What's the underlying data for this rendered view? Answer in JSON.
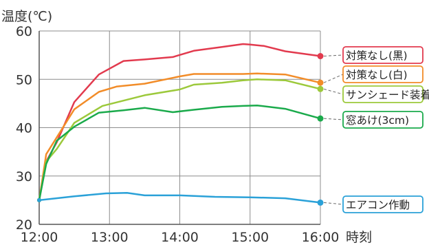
{
  "chart_data": {
    "type": "line",
    "ylabel": "温度(℃)",
    "xlabel": "時刻",
    "x_ticks": [
      "12:00",
      "13:00",
      "14:00",
      "15:00",
      "16:00"
    ],
    "y_ticks": [
      20,
      30,
      40,
      50,
      60
    ],
    "xlim": [
      12.0,
      16.0
    ],
    "ylim": [
      20,
      60
    ],
    "grid": true,
    "legend_placement": "right, leader lines to series end points",
    "series": [
      {
        "name": "対策なし(黒)",
        "color": "#e23a4e",
        "x": [
          12.0,
          12.1,
          12.25,
          12.5,
          12.85,
          13.2,
          13.5,
          13.9,
          14.2,
          14.6,
          14.9,
          15.0,
          15.2,
          15.5,
          16.0
        ],
        "y": [
          25,
          33,
          37,
          45.3,
          51,
          53.8,
          54.1,
          54.6,
          55.9,
          56.7,
          57.3,
          57.2,
          56.9,
          55.8,
          54.8
        ]
      },
      {
        "name": "対策なし(白)",
        "color": "#f28c28",
        "x": [
          12.0,
          12.1,
          12.25,
          12.5,
          12.85,
          13.1,
          13.5,
          14.0,
          14.2,
          14.6,
          14.9,
          15.1,
          15.5,
          16.0
        ],
        "y": [
          25,
          34.5,
          38,
          43.8,
          47.4,
          48.5,
          49.1,
          50.6,
          51.1,
          51.1,
          51.1,
          51.2,
          51,
          49.3
        ]
      },
      {
        "name": "サンシェード装着",
        "color": "#9cc93b",
        "x": [
          12.0,
          12.1,
          12.25,
          12.5,
          12.9,
          13.2,
          13.5,
          14.0,
          14.2,
          14.6,
          14.9,
          15.1,
          15.5,
          16.0
        ],
        "y": [
          25,
          33,
          35.6,
          41,
          44.5,
          45.6,
          46.7,
          47.9,
          48.9,
          49.3,
          49.8,
          50,
          49.8,
          48
        ]
      },
      {
        "name": "窓あけ(3cm)",
        "color": "#1aaa4b",
        "x": [
          12.0,
          12.1,
          12.25,
          12.5,
          12.85,
          13.2,
          13.5,
          13.9,
          14.2,
          14.6,
          14.9,
          15.1,
          15.5,
          16.0
        ],
        "y": [
          25,
          32.5,
          37.3,
          40.2,
          43.1,
          43.6,
          44.1,
          43.2,
          43.7,
          44.3,
          44.5,
          44.6,
          43.9,
          41.9
        ]
      },
      {
        "name": "エアコン作動",
        "color": "#2aa1d8",
        "x": [
          12.0,
          12.5,
          12.95,
          13.25,
          13.5,
          14.0,
          14.5,
          15.0,
          15.5,
          16.0
        ],
        "y": [
          25,
          25.8,
          26.4,
          26.5,
          26,
          26,
          25.7,
          25.6,
          25.4,
          24.5
        ]
      }
    ]
  }
}
